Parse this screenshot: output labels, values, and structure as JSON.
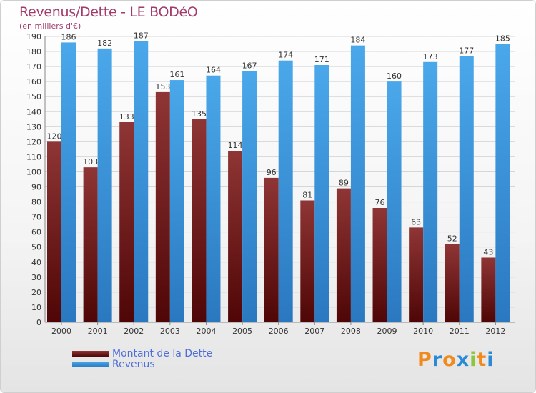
{
  "chart_data": {
    "type": "bar",
    "title": "Revenus/Dette - LE BODéO",
    "subtitle": "(en milliers d'€)",
    "categories": [
      "2000",
      "2001",
      "2002",
      "2003",
      "2004",
      "2005",
      "2006",
      "2007",
      "2008",
      "2009",
      "2010",
      "2011",
      "2012"
    ],
    "series": [
      {
        "name": "Montant de la Dette",
        "color": "#7a1a1a",
        "values": [
          120,
          103,
          133,
          153,
          135,
          114,
          96,
          81,
          89,
          76,
          63,
          52,
          43
        ]
      },
      {
        "name": "Revenus",
        "color": "#3f9be0",
        "values": [
          186,
          182,
          187,
          161,
          164,
          167,
          174,
          171,
          184,
          160,
          173,
          177,
          185
        ]
      }
    ],
    "ylim": [
      0,
      190
    ],
    "yticks": [
      0,
      10,
      20,
      30,
      40,
      50,
      60,
      70,
      80,
      90,
      100,
      110,
      120,
      130,
      140,
      150,
      160,
      170,
      180,
      190
    ],
    "grid": true,
    "legend_position": "bottom-left"
  },
  "logo": {
    "letters": [
      "P",
      "r",
      "o",
      "x",
      "i",
      "t",
      "i"
    ],
    "colors": [
      "#f08a1c",
      "#2a8ad8",
      "#f08a1c",
      "#2a8ad8",
      "#8cc63f",
      "#f08a1c",
      "#2a8ad8"
    ]
  }
}
